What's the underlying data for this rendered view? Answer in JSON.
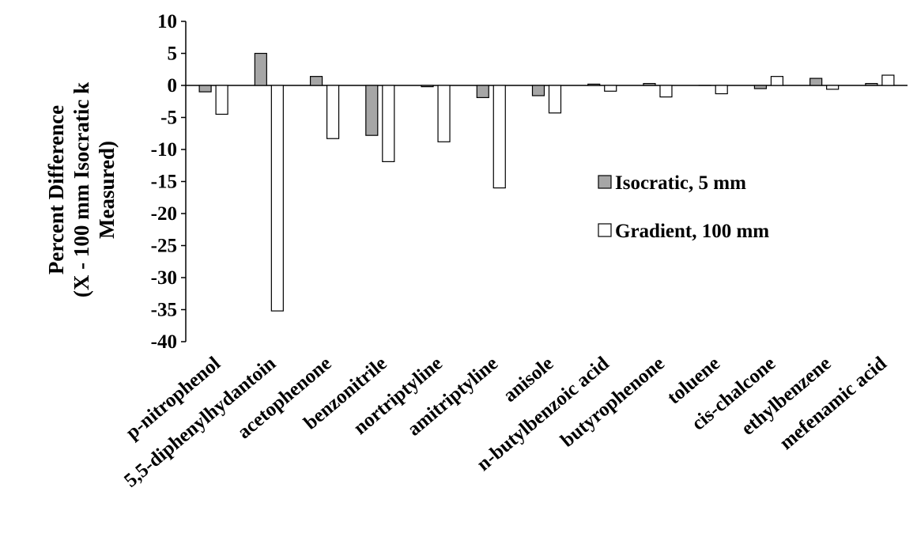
{
  "chart_data": {
    "type": "bar",
    "title": "",
    "ylabel_lines": [
      "Percent Difference",
      "(X - 100 mm Isocratic k",
      "Measured)"
    ],
    "xlabel": "",
    "ylim": [
      -40,
      10
    ],
    "yticks": [
      10,
      5,
      0,
      -5,
      -10,
      -15,
      -20,
      -25,
      -30,
      -35,
      -40
    ],
    "grid": false,
    "legend_position": "right-center",
    "categories": [
      "p-nitrophenol",
      "5,5-diphenylhydantoin",
      "acetophenone",
      "benzonitrile",
      "nortriptyline",
      "amitriptyline",
      "anisole",
      "n-butylbenzoic acid",
      "butyrophenone",
      "toluene",
      "cis-chalcone",
      "ethylbenzene",
      "mefenamic acid"
    ],
    "series": [
      {
        "name": "Isocratic, 5 mm",
        "color": "#a6a6a6",
        "values": [
          -1.0,
          5.0,
          1.4,
          -7.8,
          -0.2,
          -1.9,
          -1.6,
          0.2,
          0.3,
          0.0,
          -0.5,
          1.1,
          0.3
        ]
      },
      {
        "name": "Gradient, 100 mm",
        "color": "#ffffff",
        "values": [
          -4.5,
          -35.2,
          -8.3,
          -11.9,
          -8.8,
          -16.0,
          -4.3,
          -0.9,
          -1.8,
          -1.3,
          1.4,
          -0.6,
          1.6
        ]
      }
    ]
  }
}
